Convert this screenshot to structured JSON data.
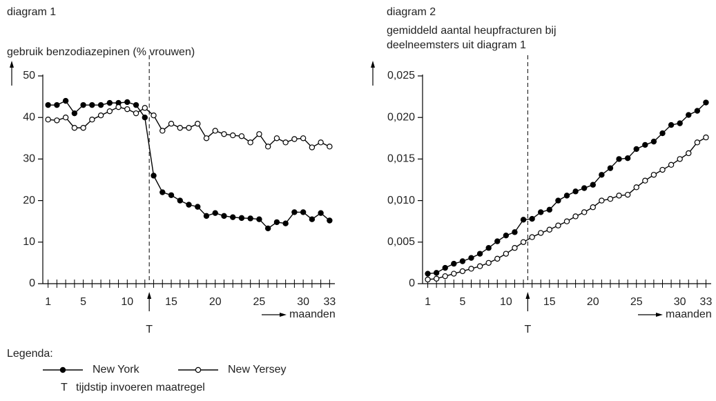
{
  "chart_data": [
    {
      "type": "line",
      "title": "diagram 1",
      "ylabel": [
        "gebruik benzodiazepinen (% vrouwen)"
      ],
      "xlabel": "maanden",
      "x": [
        1,
        2,
        3,
        4,
        5,
        6,
        7,
        8,
        9,
        10,
        11,
        12,
        13,
        14,
        15,
        16,
        17,
        18,
        19,
        20,
        21,
        22,
        23,
        24,
        25,
        26,
        27,
        28,
        29,
        30,
        31,
        32,
        33
      ],
      "series": [
        {
          "name": "New York",
          "color": "#000000",
          "marker": "filled",
          "values": [
            43,
            43,
            44,
            41,
            43,
            43,
            43,
            43.5,
            43.5,
            43.7,
            43,
            40,
            26,
            22,
            21.3,
            20,
            19,
            18.5,
            16.3,
            17,
            16.3,
            16,
            15.8,
            15.7,
            15.5,
            13.3,
            14.8,
            14.5,
            17.2,
            17.2,
            15.5,
            17,
            15.2
          ]
        },
        {
          "name": "New Yersey",
          "color": "#000000",
          "marker": "open",
          "values": [
            39.5,
            39.3,
            40,
            37.5,
            37.5,
            39.5,
            40.5,
            41.5,
            42.5,
            42,
            41,
            42.3,
            40.5,
            36.8,
            38.5,
            37.5,
            37.5,
            38.5,
            35,
            36.8,
            36,
            35.7,
            35.5,
            34,
            36,
            33,
            35,
            34,
            34.8,
            35,
            32.8,
            34,
            33
          ]
        }
      ],
      "xlim": [
        0.4,
        33.6
      ],
      "xticks": [
        1,
        5,
        10,
        15,
        20,
        25,
        30,
        33
      ],
      "ylim": [
        0,
        50
      ],
      "yticks": [
        0,
        10,
        20,
        30,
        40,
        50
      ],
      "event": {
        "x": 12.5,
        "label": "T"
      }
    },
    {
      "type": "line",
      "title": "diagram 2",
      "ylabel": [
        "gemiddeld aantal heupfracturen bij",
        "deelneemsters uit diagram 1"
      ],
      "xlabel": "maanden",
      "x": [
        1,
        2,
        3,
        4,
        5,
        6,
        7,
        8,
        9,
        10,
        11,
        12,
        13,
        14,
        15,
        16,
        17,
        18,
        19,
        20,
        21,
        22,
        23,
        24,
        25,
        26,
        27,
        28,
        29,
        30,
        31,
        32,
        33
      ],
      "series": [
        {
          "name": "New York",
          "color": "#000000",
          "marker": "filled",
          "values": [
            0.0012,
            0.0013,
            0.0019,
            0.0024,
            0.0027,
            0.0031,
            0.0036,
            0.0043,
            0.0051,
            0.0058,
            0.0062,
            0.0077,
            0.0078,
            0.0086,
            0.0089,
            0.01,
            0.0106,
            0.0111,
            0.0115,
            0.0119,
            0.0131,
            0.0139,
            0.015,
            0.0151,
            0.0162,
            0.0167,
            0.0171,
            0.0181,
            0.0191,
            0.0193,
            0.0203,
            0.0208,
            0.0218
          ]
        },
        {
          "name": "New Yersey",
          "color": "#000000",
          "marker": "open",
          "values": [
            0.0005,
            0.0006,
            0.0009,
            0.0012,
            0.0015,
            0.0018,
            0.0021,
            0.0025,
            0.003,
            0.0036,
            0.0043,
            0.005,
            0.0056,
            0.0061,
            0.0065,
            0.007,
            0.0075,
            0.0081,
            0.0086,
            0.0092,
            0.01,
            0.0102,
            0.0106,
            0.0107,
            0.0116,
            0.0124,
            0.0131,
            0.0137,
            0.0143,
            0.015,
            0.0157,
            0.017,
            0.0176
          ]
        }
      ],
      "xlim": [
        0.4,
        33.6
      ],
      "xticks": [
        1,
        5,
        10,
        15,
        20,
        25,
        30,
        33
      ],
      "ylim": [
        0,
        0.025
      ],
      "yticks": [
        0,
        {
          "value": 0.005,
          "label": "0,005"
        },
        {
          "value": 0.01,
          "label": "0,010"
        },
        {
          "value": 0.015,
          "label": "0,015"
        },
        {
          "value": 0.02,
          "label": "0,020"
        },
        {
          "value": 0.025,
          "label": "0,025"
        }
      ],
      "event": {
        "x": 12.5,
        "label": "T"
      }
    }
  ],
  "legend": {
    "title": "Legenda:",
    "note": "tijdstip invoeren maatregel"
  }
}
